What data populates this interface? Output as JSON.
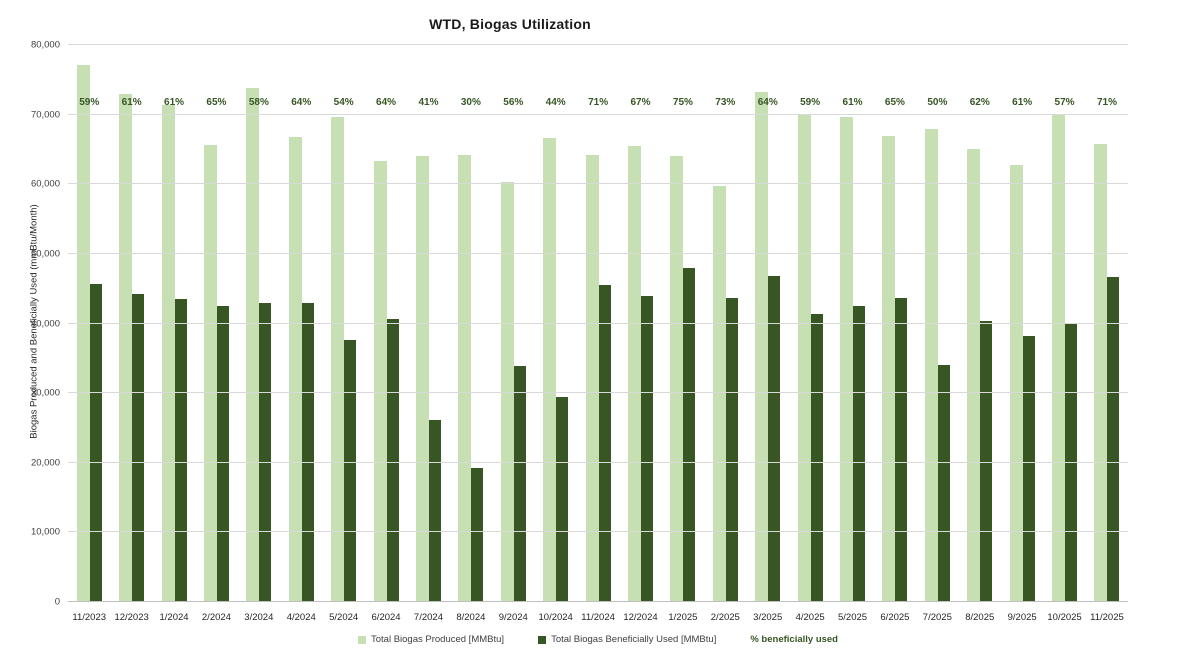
{
  "title": "WTD, Biogas Utilization",
  "y_axis": {
    "title": "Biogas Produced and Beneficially Used (mmBtu/Month)",
    "ticks": [
      "0",
      "10,000",
      "20,000",
      "30,000",
      "40,000",
      "50,000",
      "60,000",
      "70,000",
      "80,000"
    ]
  },
  "colors": {
    "produced": "#c6e0b4",
    "used": "#375623",
    "pct_text": "#375623",
    "gridline": "#d9d9d9",
    "axis_line": "#bfbfbf"
  },
  "legend": [
    {
      "label": "Total Biogas Produced [MMBtu]",
      "marker": true,
      "color": "#c6e0b4"
    },
    {
      "label": "Total Biogas Beneficially Used [MMBtu]",
      "marker": true,
      "color": "#375623"
    },
    {
      "label": "% beneficially used",
      "marker": false,
      "color": "#375623"
    }
  ],
  "chart_data": {
    "type": "bar",
    "title": "WTD, Biogas Utilization",
    "xlabel": "",
    "ylabel": "Biogas Produced and Beneficially Used (mmBtu/Month)",
    "ylim": [
      0,
      80000
    ],
    "ytick_step": 10000,
    "grid": true,
    "legend_position": "bottom",
    "categories": [
      "11/2023",
      "12/2023",
      "1/2024",
      "2/2024",
      "3/2024",
      "4/2024",
      "5/2024",
      "6/2024",
      "7/2024",
      "8/2024",
      "9/2024",
      "10/2024",
      "11/2024",
      "12/2024",
      "1/2025",
      "2/2025",
      "3/2025",
      "4/2025",
      "5/2025",
      "6/2025",
      "7/2025",
      "8/2025",
      "9/2025",
      "10/2025",
      "11/2025"
    ],
    "series": [
      {
        "name": "Total Biogas Produced [MMBtu]",
        "color": "#c6e0b4",
        "values": [
          77200,
          73000,
          71400,
          65600,
          73800,
          66800,
          69600,
          63300,
          64100,
          64200,
          60300,
          66700,
          64200,
          65500,
          64000,
          59700,
          73200,
          70000,
          69600,
          67000,
          67900,
          65000,
          62700,
          70100,
          65800
        ]
      },
      {
        "name": "Total Biogas Beneficially Used [MMBtu]",
        "color": "#375623",
        "values": [
          45700,
          44300,
          43500,
          42500,
          42900,
          42900,
          37700,
          40700,
          26200,
          19300,
          33900,
          29400,
          45600,
          43900,
          48000,
          43600,
          46800,
          41300,
          42500,
          43600,
          34000,
          40300,
          38200,
          40100,
          46700
        ]
      }
    ],
    "labels": {
      "name": "% beneficially used",
      "values": [
        "59%",
        "61%",
        "61%",
        "65%",
        "58%",
        "64%",
        "54%",
        "64%",
        "41%",
        "30%",
        "56%",
        "44%",
        "71%",
        "67%",
        "75%",
        "73%",
        "64%",
        "59%",
        "61%",
        "65%",
        "50%",
        "62%",
        "61%",
        "57%",
        "71%"
      ]
    }
  }
}
